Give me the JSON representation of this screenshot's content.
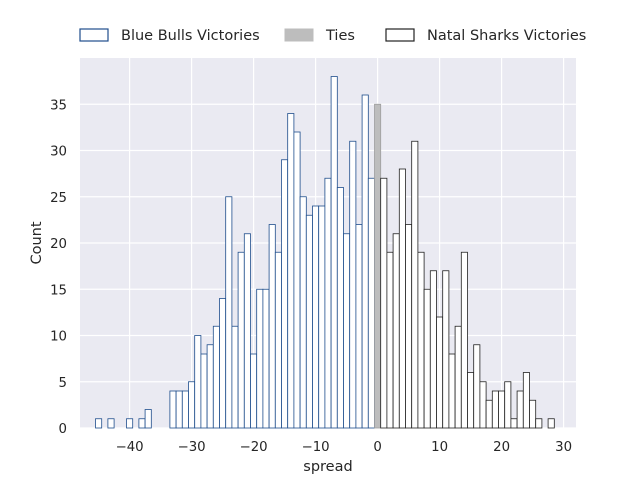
{
  "chart_data": {
    "type": "bar",
    "chart_kind": "histogram",
    "xlabel": "spread",
    "ylabel": "Count",
    "xlim": [
      -48,
      32
    ],
    "ylim": [
      0,
      40
    ],
    "xticks": [
      -40,
      -30,
      -20,
      -10,
      0,
      10,
      20,
      30
    ],
    "yticks": [
      0,
      5,
      10,
      15,
      20,
      25,
      30,
      35
    ],
    "xtick_labels": [
      "−40",
      "−30",
      "−20",
      "−10",
      "0",
      "10",
      "20",
      "30"
    ],
    "ytick_labels": [
      "0",
      "5",
      "10",
      "15",
      "20",
      "25",
      "30",
      "35"
    ],
    "grid": true,
    "legend_position": "top, above plot",
    "bin_width": 1,
    "colors": {
      "background": "#eaeaf2",
      "grid": "#ffffff",
      "blue_edge": "#1f4e8c",
      "black_edge": "#222222",
      "ties_fill": "#bdbdbd"
    },
    "series": [
      {
        "name": "Blue Bulls Victories",
        "style": "outline",
        "bins": [
          {
            "x": -45,
            "count": 1
          },
          {
            "x": -43,
            "count": 1
          },
          {
            "x": -40,
            "count": 1
          },
          {
            "x": -38,
            "count": 1
          },
          {
            "x": -37,
            "count": 2
          },
          {
            "x": -33,
            "count": 4
          },
          {
            "x": -32,
            "count": 4
          },
          {
            "x": -31,
            "count": 4
          },
          {
            "x": -30,
            "count": 5
          },
          {
            "x": -29,
            "count": 10
          },
          {
            "x": -28,
            "count": 8
          },
          {
            "x": -27,
            "count": 9
          },
          {
            "x": -26,
            "count": 11
          },
          {
            "x": -25,
            "count": 14
          },
          {
            "x": -24,
            "count": 25
          },
          {
            "x": -23,
            "count": 11
          },
          {
            "x": -22,
            "count": 19
          },
          {
            "x": -21,
            "count": 21
          },
          {
            "x": -20,
            "count": 8
          },
          {
            "x": -19,
            "count": 15
          },
          {
            "x": -18,
            "count": 15
          },
          {
            "x": -17,
            "count": 22
          },
          {
            "x": -16,
            "count": 19
          },
          {
            "x": -15,
            "count": 29
          },
          {
            "x": -14,
            "count": 34
          },
          {
            "x": -13,
            "count": 32
          },
          {
            "x": -12,
            "count": 25
          },
          {
            "x": -11,
            "count": 23
          },
          {
            "x": -10,
            "count": 24
          },
          {
            "x": -9,
            "count": 24
          },
          {
            "x": -8,
            "count": 27
          },
          {
            "x": -7,
            "count": 38
          },
          {
            "x": -6,
            "count": 26
          },
          {
            "x": -5,
            "count": 21
          },
          {
            "x": -4,
            "count": 31
          },
          {
            "x": -3,
            "count": 22
          },
          {
            "x": -2,
            "count": 36
          },
          {
            "x": -1,
            "count": 27
          }
        ]
      },
      {
        "name": "Ties",
        "style": "filled",
        "bins": [
          {
            "x": 0,
            "count": 35
          }
        ]
      },
      {
        "name": "Natal Sharks Victories",
        "style": "outline",
        "bins": [
          {
            "x": 1,
            "count": 27
          },
          {
            "x": 2,
            "count": 19
          },
          {
            "x": 3,
            "count": 21
          },
          {
            "x": 4,
            "count": 28
          },
          {
            "x": 5,
            "count": 22
          },
          {
            "x": 6,
            "count": 31
          },
          {
            "x": 7,
            "count": 19
          },
          {
            "x": 8,
            "count": 15
          },
          {
            "x": 9,
            "count": 17
          },
          {
            "x": 10,
            "count": 12
          },
          {
            "x": 11,
            "count": 17
          },
          {
            "x": 12,
            "count": 8
          },
          {
            "x": 13,
            "count": 11
          },
          {
            "x": 14,
            "count": 19
          },
          {
            "x": 15,
            "count": 6
          },
          {
            "x": 16,
            "count": 9
          },
          {
            "x": 17,
            "count": 5
          },
          {
            "x": 18,
            "count": 3
          },
          {
            "x": 19,
            "count": 4
          },
          {
            "x": 20,
            "count": 4
          },
          {
            "x": 21,
            "count": 5
          },
          {
            "x": 22,
            "count": 1
          },
          {
            "x": 23,
            "count": 4
          },
          {
            "x": 24,
            "count": 6
          },
          {
            "x": 25,
            "count": 3
          },
          {
            "x": 26,
            "count": 1
          },
          {
            "x": 28,
            "count": 1
          }
        ]
      }
    ]
  }
}
